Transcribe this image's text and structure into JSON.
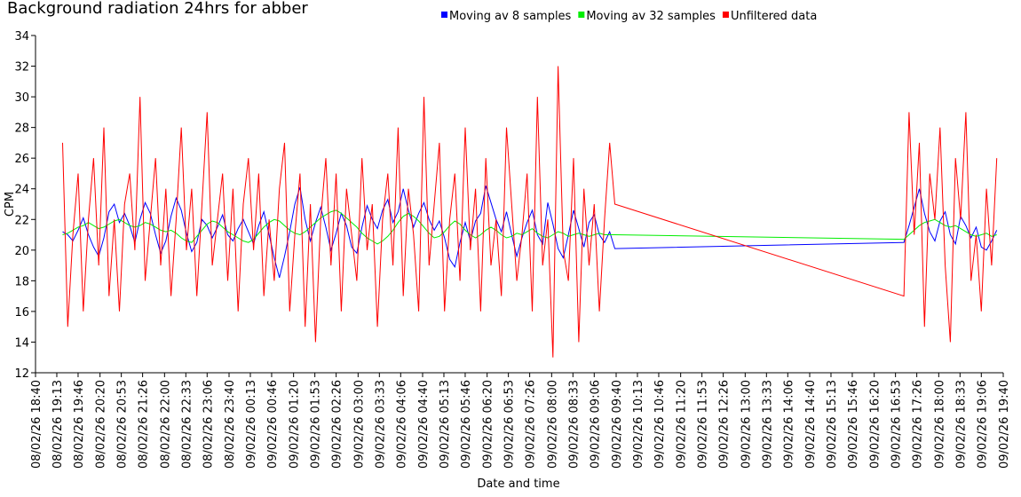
{
  "chart_data": {
    "type": "line",
    "title": "Background radiation 24hrs for abber",
    "x_label": "Date and time",
    "y_label": "CPM",
    "legend_position": "top",
    "xlim": [
      "08/02/26 18:40",
      "09/02/26 19:40"
    ],
    "xticks": [
      "08/02/26 18:40",
      "08/02/26 19:13",
      "08/02/26 19:46",
      "08/02/26 20:20",
      "08/02/26 20:53",
      "08/02/26 21:26",
      "08/02/26 22:00",
      "08/02/26 22:33",
      "08/02/26 23:06",
      "08/02/26 23:40",
      "09/02/26 00:13",
      "09/02/26 00:46",
      "09/02/26 01:20",
      "09/02/26 01:53",
      "09/02/26 02:26",
      "09/02/26 03:00",
      "09/02/26 03:33",
      "09/02/26 04:06",
      "09/02/26 04:40",
      "09/02/26 05:13",
      "09/02/26 05:46",
      "09/02/26 06:20",
      "09/02/26 06:53",
      "09/02/26 07:26",
      "09/02/26 08:00",
      "09/02/26 08:33",
      "09/02/26 09:06",
      "09/02/26 09:40",
      "09/02/26 10:13",
      "09/02/26 10:46",
      "09/02/26 11:20",
      "09/02/26 11:53",
      "09/02/26 12:26",
      "09/02/26 13:00",
      "09/02/26 13:33",
      "09/02/26 14:06",
      "09/02/26 14:40",
      "09/02/26 15:13",
      "09/02/26 15:46",
      "09/02/26 16:20",
      "09/02/26 16:53",
      "09/02/26 17:26",
      "09/02/26 18:00",
      "09/02/26 18:33",
      "09/02/26 19:06",
      "09/02/26 19:40"
    ],
    "ylim": [
      12,
      34
    ],
    "yticks": [
      12,
      14,
      16,
      18,
      20,
      22,
      24,
      26,
      28,
      30,
      32,
      34
    ],
    "x": [
      "08/02/26 19:22",
      "08/02/26 19:30",
      "08/02/26 19:38",
      "08/02/26 19:46",
      "08/02/26 19:54",
      "08/02/26 20:02",
      "08/02/26 20:10",
      "08/02/26 20:18",
      "08/02/26 20:26",
      "08/02/26 20:34",
      "08/02/26 20:42",
      "08/02/26 20:50",
      "08/02/26 20:58",
      "08/02/26 21:06",
      "08/02/26 21:14",
      "08/02/26 21:22",
      "08/02/26 21:30",
      "08/02/26 21:38",
      "08/02/26 21:46",
      "08/02/26 21:54",
      "08/02/26 22:02",
      "08/02/26 22:10",
      "08/02/26 22:18",
      "08/02/26 22:26",
      "08/02/26 22:34",
      "08/02/26 22:42",
      "08/02/26 22:50",
      "08/02/26 22:58",
      "08/02/26 23:06",
      "08/02/26 23:14",
      "08/02/26 23:22",
      "08/02/26 23:30",
      "08/02/26 23:38",
      "08/02/26 23:46",
      "08/02/26 23:54",
      "09/02/26 00:02",
      "09/02/26 00:10",
      "09/02/26 00:18",
      "09/02/26 00:26",
      "09/02/26 00:34",
      "09/02/26 00:42",
      "09/02/26 00:50",
      "09/02/26 00:58",
      "09/02/26 01:06",
      "09/02/26 01:14",
      "09/02/26 01:22",
      "09/02/26 01:30",
      "09/02/26 01:38",
      "09/02/26 01:46",
      "09/02/26 01:54",
      "09/02/26 02:02",
      "09/02/26 02:10",
      "09/02/26 02:18",
      "09/02/26 02:26",
      "09/02/26 02:34",
      "09/02/26 02:42",
      "09/02/26 02:50",
      "09/02/26 02:58",
      "09/02/26 03:06",
      "09/02/26 03:14",
      "09/02/26 03:22",
      "09/02/26 03:30",
      "09/02/26 03:38",
      "09/02/26 03:46",
      "09/02/26 03:54",
      "09/02/26 04:02",
      "09/02/26 04:10",
      "09/02/26 04:18",
      "09/02/26 04:26",
      "09/02/26 04:34",
      "09/02/26 04:42",
      "09/02/26 04:50",
      "09/02/26 04:58",
      "09/02/26 05:06",
      "09/02/26 05:14",
      "09/02/26 05:22",
      "09/02/26 05:30",
      "09/02/26 05:38",
      "09/02/26 05:46",
      "09/02/26 05:54",
      "09/02/26 06:02",
      "09/02/26 06:10",
      "09/02/26 06:18",
      "09/02/26 06:26",
      "09/02/26 06:34",
      "09/02/26 06:42",
      "09/02/26 06:50",
      "09/02/26 06:58",
      "09/02/26 07:06",
      "09/02/26 07:14",
      "09/02/26 07:22",
      "09/02/26 07:30",
      "09/02/26 07:38",
      "09/02/26 07:46",
      "09/02/26 07:54",
      "09/02/26 08:02",
      "09/02/26 08:10",
      "09/02/26 08:18",
      "09/02/26 08:26",
      "09/02/26 08:34",
      "09/02/26 08:42",
      "09/02/26 08:50",
      "09/02/26 08:58",
      "09/02/26 09:06",
      "09/02/26 09:14",
      "09/02/26 09:22",
      "09/02/26 09:30",
      "09/02/26 09:38",
      "09/02/26 17:06",
      "09/02/26 17:14",
      "09/02/26 17:22",
      "09/02/26 17:30",
      "09/02/26 17:38",
      "09/02/26 17:46",
      "09/02/26 17:54",
      "09/02/26 18:02",
      "09/02/26 18:10",
      "09/02/26 18:18",
      "09/02/26 18:26",
      "09/02/26 18:34",
      "09/02/26 18:42",
      "09/02/26 18:50",
      "09/02/26 18:58",
      "09/02/26 19:06",
      "09/02/26 19:14",
      "09/02/26 19:22",
      "09/02/26 19:30"
    ],
    "series": [
      {
        "name": "Moving av 8 samples",
        "color": "#0000ff",
        "values": [
          21.2,
          21.0,
          20.6,
          21.3,
          22.1,
          21.0,
          20.2,
          19.6,
          20.8,
          22.5,
          23.0,
          21.8,
          22.4,
          21.6,
          20.5,
          22.0,
          23.1,
          22.4,
          21.0,
          19.8,
          20.6,
          22.2,
          23.4,
          22.6,
          21.1,
          19.9,
          20.5,
          22.0,
          21.6,
          20.8,
          21.5,
          22.3,
          21.0,
          20.6,
          21.4,
          22.0,
          21.2,
          20.4,
          21.6,
          22.5,
          21.0,
          19.5,
          18.2,
          19.6,
          21.2,
          23.0,
          24.1,
          22.0,
          20.6,
          21.8,
          22.8,
          21.5,
          20.0,
          21.1,
          22.4,
          21.6,
          20.2,
          19.8,
          21.5,
          22.9,
          22.0,
          21.4,
          22.6,
          23.3,
          21.8,
          22.5,
          24.0,
          22.6,
          21.5,
          22.4,
          23.1,
          22.0,
          21.3,
          21.9,
          20.8,
          19.4,
          18.9,
          20.5,
          21.8,
          20.6,
          21.9,
          22.4,
          24.2,
          23.1,
          22.0,
          21.2,
          22.5,
          21.0,
          19.6,
          20.8,
          21.8,
          22.6,
          21.0,
          20.4,
          23.1,
          21.7,
          20.1,
          19.5,
          21.0,
          22.6,
          21.4,
          20.2,
          21.8,
          22.3,
          21.0,
          20.5,
          21.2,
          20.1,
          20.5,
          21.6,
          22.8,
          24.0,
          22.4,
          21.2,
          20.6,
          21.9,
          22.5,
          21.0,
          20.4,
          22.2,
          21.6,
          20.8,
          21.5,
          20.2,
          20.0,
          20.6,
          21.3
        ]
      },
      {
        "name": "Moving av 32 samples",
        "color": "#00ee00",
        "values": [
          21.0,
          21.1,
          21.3,
          21.5,
          21.6,
          21.8,
          21.6,
          21.4,
          21.5,
          21.7,
          21.9,
          22.0,
          21.8,
          21.6,
          21.5,
          21.6,
          21.8,
          21.7,
          21.5,
          21.3,
          21.2,
          21.3,
          21.1,
          20.8,
          20.6,
          20.5,
          20.9,
          21.3,
          21.7,
          21.9,
          21.8,
          21.5,
          21.2,
          21.0,
          20.8,
          20.6,
          20.5,
          20.7,
          21.1,
          21.5,
          21.8,
          22.0,
          21.9,
          21.6,
          21.3,
          21.1,
          21.0,
          21.2,
          21.5,
          21.8,
          22.1,
          22.3,
          22.5,
          22.6,
          22.4,
          22.1,
          21.8,
          21.5,
          21.1,
          20.8,
          20.6,
          20.4,
          20.6,
          20.9,
          21.3,
          21.8,
          22.2,
          22.4,
          22.2,
          21.9,
          21.5,
          21.1,
          20.8,
          20.9,
          21.2,
          21.6,
          21.9,
          21.7,
          21.3,
          21.0,
          20.8,
          21.0,
          21.3,
          21.5,
          21.3,
          21.0,
          20.8,
          20.9,
          21.1,
          21.0,
          21.2,
          21.4,
          21.1,
          20.9,
          20.8,
          21.0,
          21.2,
          21.1,
          20.9,
          21.0,
          21.1,
          21.0,
          20.9,
          21.0,
          21.1,
          21.0,
          21.0,
          21.0,
          20.7,
          21.0,
          21.3,
          21.6,
          21.8,
          21.9,
          22.0,
          21.8,
          21.6,
          21.5,
          21.6,
          21.4,
          21.2,
          21.0,
          20.9,
          21.0,
          21.1,
          20.9,
          21.0
        ]
      },
      {
        "name": "Unfiltered data",
        "color": "#ff0000",
        "values": [
          27,
          15,
          21,
          25,
          16,
          22,
          26,
          19,
          28,
          17,
          22,
          16,
          23,
          25,
          20,
          30,
          18,
          22,
          26,
          19,
          24,
          17,
          22,
          28,
          20,
          24,
          17,
          23,
          29,
          19,
          22,
          25,
          18,
          24,
          16,
          23,
          26,
          20,
          25,
          17,
          22,
          18,
          24,
          27,
          16,
          21,
          25,
          15,
          23,
          14,
          22,
          26,
          19,
          25,
          16,
          24,
          21,
          18,
          26,
          20,
          23,
          15,
          22,
          25,
          19,
          28,
          17,
          24,
          21,
          16,
          30,
          19,
          23,
          27,
          16,
          22,
          25,
          18,
          28,
          20,
          24,
          16,
          26,
          19,
          22,
          17,
          28,
          23,
          18,
          21,
          25,
          16,
          30,
          19,
          22,
          13,
          32,
          20,
          18,
          26,
          14,
          24,
          19,
          23,
          16,
          22,
          27,
          23,
          17,
          29,
          21,
          27,
          15,
          25,
          22,
          28,
          19,
          14,
          26,
          22,
          29,
          18,
          21,
          16,
          24,
          19,
          26
        ]
      }
    ]
  }
}
